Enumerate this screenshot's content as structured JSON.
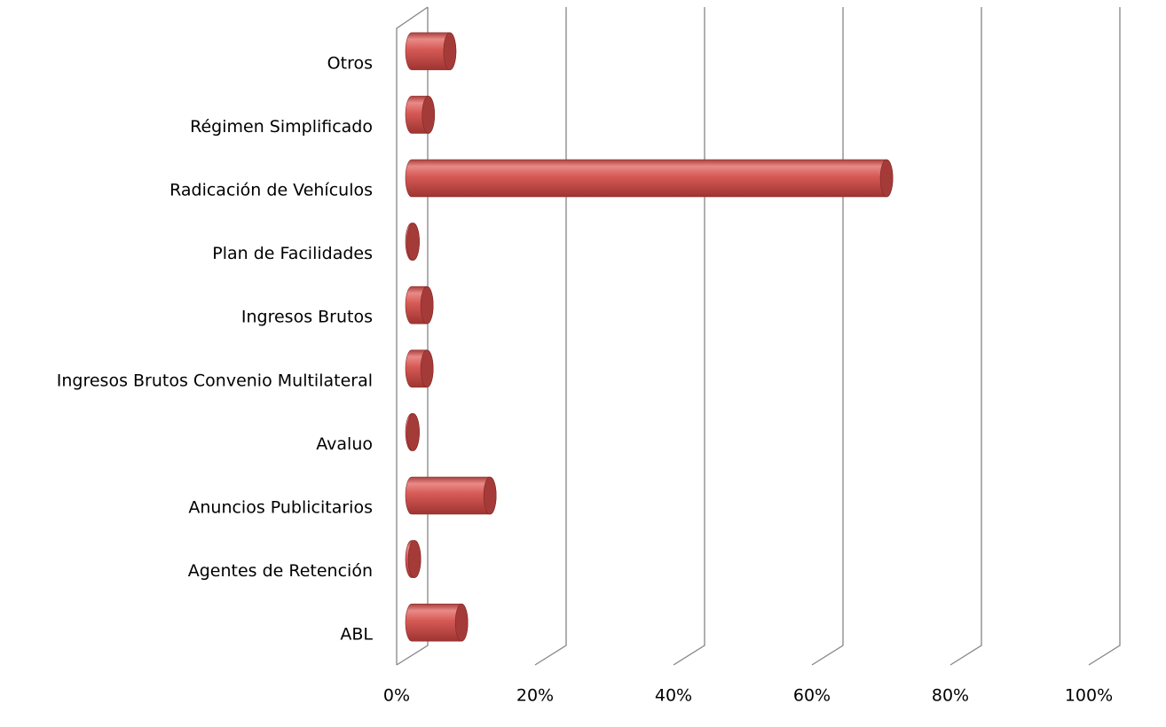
{
  "chart_data": {
    "type": "bar3d_horizontal",
    "categories": [
      "Otros",
      "Régimen Simplificado",
      "Radicación de Vehículos",
      "Plan de Facilidades",
      "Ingresos Brutos",
      "Ingresos Brutos Convenio Multilateral",
      "Avaluo",
      "Anuncios Publicitarios",
      "Agentes de Retención",
      "ABL"
    ],
    "values": [
      5.5,
      2.4,
      68.6,
      0.2,
      2.2,
      2.2,
      0.2,
      11.3,
      0.4,
      7.2
    ],
    "color": "#c0504d",
    "xlim": [
      0,
      100
    ],
    "xticks": [
      {
        "value": 0,
        "label": "0%"
      },
      {
        "value": 20,
        "label": "20%"
      },
      {
        "value": 40,
        "label": "40%"
      },
      {
        "value": 60,
        "label": "60%"
      },
      {
        "value": 80,
        "label": "80%"
      },
      {
        "value": 100,
        "label": "100%"
      }
    ],
    "grid": true
  }
}
